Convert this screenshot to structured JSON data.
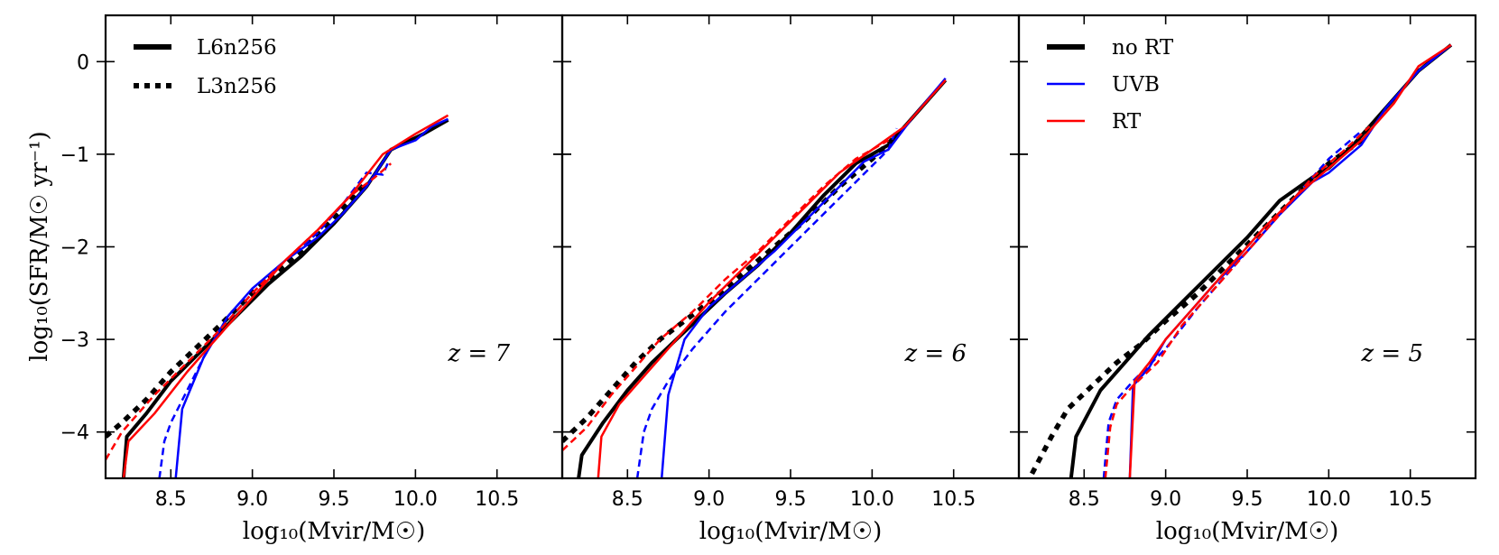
{
  "chart_data": {
    "type": "line",
    "ylabel": "log₁₀(SFR/M☉ yr⁻¹)",
    "xlabel": "log₁₀(Mvir/M☉)",
    "xlim": [
      8.1,
      10.9
    ],
    "ylim": [
      -4.5,
      0.5
    ],
    "xticks": [
      "8.5",
      "9.0",
      "9.5",
      "10.0",
      "10.5"
    ],
    "yticks": [
      "0",
      "−1",
      "−2",
      "−3",
      "−4"
    ],
    "colors": {
      "no_rt": "#000000",
      "uvb": "#0000ff",
      "rt": "#ff0000"
    },
    "legend_left": [
      {
        "label": "L6n256",
        "style": "solid"
      },
      {
        "label": "L3n256",
        "style": "dotted"
      }
    ],
    "legend_right": [
      {
        "label": "no RT",
        "color": "#000000"
      },
      {
        "label": "UVB",
        "color": "#0000ff"
      },
      {
        "label": "RT",
        "color": "#ff0000"
      }
    ],
    "panels": [
      {
        "z_label": "z = 7",
        "series": [
          {
            "name": "no RT L3n256",
            "color": "#000000",
            "style": "dotted",
            "width": 5.5,
            "x": [
              8.1,
              8.2,
              8.35,
              8.5,
              8.65,
              8.8,
              9.0,
              9.2,
              9.4,
              9.55,
              9.7
            ],
            "y": [
              -4.05,
              -3.9,
              -3.65,
              -3.35,
              -3.1,
              -2.85,
              -2.5,
              -2.2,
              -1.88,
              -1.6,
              -1.3
            ]
          },
          {
            "name": "no RT L6n256",
            "color": "#000000",
            "style": "solid",
            "width": 4,
            "x": [
              8.21,
              8.23,
              8.35,
              8.5,
              8.7,
              8.9,
              9.1,
              9.3,
              9.5,
              9.7,
              9.85,
              10.05,
              10.2
            ],
            "y": [
              -4.5,
              -4.05,
              -3.8,
              -3.45,
              -3.1,
              -2.75,
              -2.4,
              -2.1,
              -1.75,
              -1.35,
              -0.95,
              -0.78,
              -0.63
            ]
          },
          {
            "name": "UVB L6n256",
            "color": "#0000ff",
            "style": "solid",
            "width": 2.5,
            "x": [
              8.53,
              8.57,
              8.7,
              8.85,
              9.0,
              9.2,
              9.4,
              9.55,
              9.7,
              9.85,
              10.0,
              10.1,
              10.2
            ],
            "y": [
              -4.5,
              -3.75,
              -3.2,
              -2.75,
              -2.45,
              -2.15,
              -1.9,
              -1.65,
              -1.35,
              -0.95,
              -0.85,
              -0.7,
              -0.62
            ]
          },
          {
            "name": "UVB L3n256",
            "color": "#0000ff",
            "style": "dashed",
            "width": 2.5,
            "x": [
              8.43,
              8.46,
              8.5,
              8.6,
              8.7,
              8.8,
              9.0,
              9.2,
              9.4,
              9.55,
              9.7,
              9.8,
              9.83
            ],
            "y": [
              -4.5,
              -4.1,
              -3.9,
              -3.55,
              -3.2,
              -2.9,
              -2.5,
              -2.15,
              -1.85,
              -1.55,
              -1.2,
              -1.22,
              -1.1
            ]
          },
          {
            "name": "RT L6n256",
            "color": "#ff0000",
            "style": "solid",
            "width": 2.5,
            "x": [
              8.21,
              8.24,
              8.4,
              8.6,
              8.8,
              9.0,
              9.2,
              9.4,
              9.6,
              9.8,
              10.0,
              10.2
            ],
            "y": [
              -4.5,
              -4.1,
              -3.8,
              -3.35,
              -2.95,
              -2.55,
              -2.15,
              -1.82,
              -1.45,
              -1.0,
              -0.78,
              -0.58
            ]
          },
          {
            "name": "RT L3n256",
            "color": "#ff0000",
            "style": "dashed",
            "width": 2.5,
            "x": [
              8.1,
              8.2,
              8.4,
              8.6,
              8.8,
              9.0,
              9.2,
              9.4,
              9.6,
              9.75,
              9.85
            ],
            "y": [
              -4.3,
              -4.0,
              -3.6,
              -3.25,
              -2.9,
              -2.5,
              -2.15,
              -1.82,
              -1.45,
              -1.25,
              -1.1
            ]
          }
        ]
      },
      {
        "z_label": "z = 6",
        "series": [
          {
            "name": "no RT L3n256",
            "color": "#000000",
            "style": "dotted",
            "width": 5.5,
            "x": [
              8.1,
              8.25,
              8.4,
              8.55,
              8.7,
              8.85,
              9.0,
              9.2,
              9.4,
              9.6,
              9.8,
              10.0,
              10.15
            ],
            "y": [
              -4.1,
              -3.85,
              -3.55,
              -3.25,
              -3.0,
              -2.8,
              -2.6,
              -2.3,
              -2.0,
              -1.7,
              -1.35,
              -1.05,
              -0.8
            ]
          },
          {
            "name": "no RT L6n256",
            "color": "#000000",
            "style": "solid",
            "width": 4,
            "x": [
              8.2,
              8.22,
              8.35,
              8.5,
              8.65,
              8.8,
              8.95,
              9.1,
              9.3,
              9.5,
              9.7,
              9.9,
              10.1,
              10.25,
              10.45
            ],
            "y": [
              -4.5,
              -4.25,
              -3.9,
              -3.55,
              -3.25,
              -3.0,
              -2.75,
              -2.5,
              -2.2,
              -1.85,
              -1.45,
              -1.1,
              -0.9,
              -0.6,
              -0.2
            ]
          },
          {
            "name": "UVB L6n256",
            "color": "#0000ff",
            "style": "solid",
            "width": 2.5,
            "x": [
              8.71,
              8.75,
              8.85,
              9.0,
              9.2,
              9.4,
              9.6,
              9.8,
              9.95,
              10.1,
              10.25,
              10.45
            ],
            "y": [
              -4.5,
              -3.6,
              -3.0,
              -2.65,
              -2.35,
              -2.05,
              -1.7,
              -1.35,
              -1.08,
              -0.95,
              -0.6,
              -0.18
            ]
          },
          {
            "name": "UVB L3n256",
            "color": "#0000ff",
            "style": "dashed",
            "width": 2.5,
            "x": [
              8.56,
              8.6,
              8.65,
              8.75,
              8.9,
              9.1,
              9.3,
              9.5,
              9.7,
              9.9,
              10.1,
              10.15
            ],
            "y": [
              -4.5,
              -4.0,
              -3.75,
              -3.45,
              -3.1,
              -2.7,
              -2.35,
              -2.0,
              -1.65,
              -1.3,
              -0.95,
              -0.72
            ]
          },
          {
            "name": "RT L6n256",
            "color": "#ff0000",
            "style": "solid",
            "width": 2.5,
            "x": [
              8.32,
              8.34,
              8.45,
              8.6,
              8.8,
              9.0,
              9.2,
              9.4,
              9.6,
              9.8,
              10.0,
              10.2,
              10.45
            ],
            "y": [
              -4.5,
              -4.05,
              -3.7,
              -3.4,
              -3.0,
              -2.6,
              -2.25,
              -1.9,
              -1.55,
              -1.2,
              -0.95,
              -0.7,
              -0.2
            ]
          },
          {
            "name": "RT L3n256",
            "color": "#ff0000",
            "style": "dashed",
            "width": 2.5,
            "x": [
              8.1,
              8.25,
              8.4,
              8.55,
              8.7,
              8.9,
              9.1,
              9.3,
              9.5,
              9.7,
              9.9,
              10.1
            ],
            "y": [
              -4.2,
              -3.95,
              -3.6,
              -3.3,
              -3.0,
              -2.7,
              -2.35,
              -2.05,
              -1.7,
              -1.35,
              -1.05,
              -0.85
            ]
          }
        ]
      },
      {
        "z_label": "z = 5",
        "series": [
          {
            "name": "no RT L3n256",
            "color": "#000000",
            "style": "dotted",
            "width": 5.5,
            "x": [
              8.18,
              8.3,
              8.4,
              8.55,
              8.7,
              8.85,
              9.0,
              9.2,
              9.4,
              9.6,
              9.8,
              10.0,
              10.2,
              10.25
            ],
            "y": [
              -4.45,
              -4.05,
              -3.75,
              -3.5,
              -3.25,
              -3.05,
              -2.8,
              -2.5,
              -2.15,
              -1.8,
              -1.45,
              -1.1,
              -0.85,
              -0.7
            ]
          },
          {
            "name": "no RT L6n256",
            "color": "#000000",
            "style": "solid",
            "width": 4,
            "x": [
              8.42,
              8.45,
              8.6,
              8.75,
              8.9,
              9.1,
              9.3,
              9.5,
              9.7,
              9.9,
              10.0,
              10.15,
              10.35,
              10.55,
              10.75
            ],
            "y": [
              -4.5,
              -4.05,
              -3.55,
              -3.25,
              -2.95,
              -2.6,
              -2.25,
              -1.9,
              -1.5,
              -1.25,
              -1.15,
              -0.9,
              -0.5,
              -0.1,
              0.18
            ]
          },
          {
            "name": "UVB L6n256",
            "color": "#0000ff",
            "style": "solid",
            "width": 2.5,
            "x": [
              8.78,
              8.8,
              8.9,
              9.0,
              9.15,
              9.3,
              9.5,
              9.7,
              9.9,
              10.0,
              10.2,
              10.35,
              10.55,
              10.75
            ],
            "y": [
              -4.5,
              -3.5,
              -3.3,
              -3.0,
              -2.7,
              -2.4,
              -2.05,
              -1.65,
              -1.3,
              -1.2,
              -0.9,
              -0.5,
              -0.1,
              0.18
            ]
          },
          {
            "name": "UVB L3n256",
            "color": "#0000ff",
            "style": "dashed",
            "width": 2.5,
            "x": [
              8.62,
              8.65,
              8.7,
              8.8,
              9.0,
              9.2,
              9.4,
              9.6,
              9.8,
              10.0,
              10.2
            ],
            "y": [
              -4.5,
              -3.9,
              -3.65,
              -3.45,
              -3.1,
              -2.65,
              -2.25,
              -1.85,
              -1.45,
              -1.05,
              -0.75
            ]
          },
          {
            "name": "RT L6n256",
            "color": "#ff0000",
            "style": "solid",
            "width": 2.5,
            "x": [
              8.78,
              8.81,
              8.9,
              9.0,
              9.2,
              9.4,
              9.6,
              9.8,
              10.0,
              10.2,
              10.4,
              10.55,
              10.75
            ],
            "y": [
              -4.5,
              -3.45,
              -3.25,
              -3.0,
              -2.6,
              -2.2,
              -1.8,
              -1.45,
              -1.15,
              -0.85,
              -0.45,
              -0.05,
              0.18
            ]
          },
          {
            "name": "RT L3n256",
            "color": "#ff0000",
            "style": "dashed",
            "width": 2.5,
            "x": [
              8.63,
              8.66,
              8.7,
              8.8,
              8.95,
              9.1,
              9.3,
              9.5,
              9.7,
              9.9,
              10.1,
              10.25
            ],
            "y": [
              -4.5,
              -3.95,
              -3.7,
              -3.5,
              -3.25,
              -2.85,
              -2.45,
              -2.05,
              -1.65,
              -1.25,
              -0.95,
              -0.7
            ]
          }
        ]
      }
    ]
  }
}
